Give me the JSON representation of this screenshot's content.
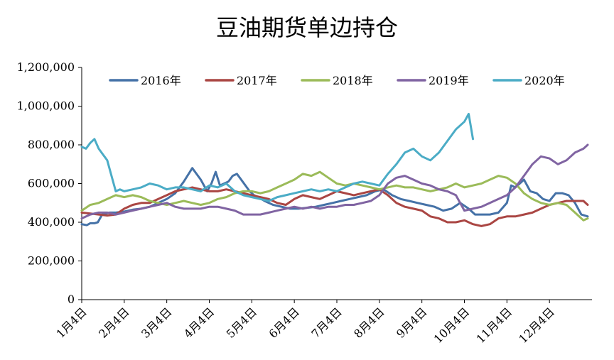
{
  "chart_data": {
    "type": "line",
    "title": "豆油期货单边持仓",
    "xlabel": "",
    "ylabel": "",
    "ylim": [
      0,
      1200000
    ],
    "y_ticks": [
      0,
      200000,
      400000,
      600000,
      800000,
      1000000,
      1200000
    ],
    "y_tick_labels": [
      "0",
      "200,000",
      "400,000",
      "600,000",
      "800,000",
      "1,000,000",
      "1,200,000"
    ],
    "x_tick_labels": [
      "1月4日",
      "2月4日",
      "3月4日",
      "4月4日",
      "5月4日",
      "6月4日",
      "7月4日",
      "8月4日",
      "9月4日",
      "10月4日",
      "11月4日",
      "12月4日"
    ],
    "x_domain": [
      0,
      12
    ],
    "grid": false,
    "legend": "top",
    "series": [
      {
        "name": "2016年",
        "color": "#4572A7",
        "x": [
          0,
          0.12,
          0.2,
          0.3,
          0.38,
          0.48,
          0.65,
          0.8,
          1.0,
          1.2,
          1.4,
          1.6,
          1.8,
          2.0,
          2.2,
          2.4,
          2.6,
          2.8,
          2.95,
          3.05,
          3.15,
          3.25,
          3.35,
          3.45,
          3.55,
          3.65,
          3.75,
          3.85,
          3.95,
          4.05,
          4.15,
          4.3,
          4.5,
          4.7,
          4.9,
          5.1,
          5.3,
          5.5,
          5.7,
          5.9,
          6.1,
          6.3,
          6.5,
          6.7,
          6.9,
          7.1,
          7.3,
          7.5,
          7.7,
          7.9,
          8.1,
          8.3,
          8.5,
          8.7,
          8.9,
          9.1,
          9.25,
          9.4,
          9.6,
          9.8,
          10.0,
          10.1,
          10.2,
          10.3,
          10.4,
          10.55,
          10.7,
          10.85,
          11.0,
          11.15,
          11.3,
          11.45,
          11.6,
          11.75,
          11.9
        ],
        "values": [
          390000,
          385000,
          395000,
          395000,
          400000,
          440000,
          450000,
          450000,
          455000,
          465000,
          470000,
          480000,
          500000,
          520000,
          550000,
          610000,
          680000,
          620000,
          560000,
          600000,
          660000,
          590000,
          600000,
          610000,
          640000,
          650000,
          620000,
          590000,
          560000,
          540000,
          530000,
          510000,
          490000,
          480000,
          470000,
          470000,
          475000,
          480000,
          490000,
          500000,
          510000,
          520000,
          530000,
          540000,
          560000,
          570000,
          540000,
          520000,
          510000,
          500000,
          490000,
          480000,
          460000,
          470000,
          500000,
          470000,
          440000,
          440000,
          440000,
          450000,
          500000,
          590000,
          580000,
          600000,
          620000,
          560000,
          550000,
          520000,
          510000,
          550000,
          550000,
          540000,
          500000,
          440000,
          430000
        ]
      },
      {
        "name": "2017年",
        "color": "#AA4643",
        "x": [
          0,
          0.2,
          0.4,
          0.6,
          0.8,
          1.0,
          1.2,
          1.4,
          1.6,
          1.8,
          2.0,
          2.2,
          2.4,
          2.6,
          2.8,
          3.0,
          3.2,
          3.4,
          3.6,
          3.8,
          4.0,
          4.2,
          4.4,
          4.6,
          4.8,
          5.0,
          5.2,
          5.4,
          5.6,
          5.8,
          6.0,
          6.2,
          6.4,
          6.6,
          6.8,
          7.0,
          7.2,
          7.4,
          7.6,
          7.8,
          8.0,
          8.2,
          8.4,
          8.6,
          8.8,
          9.0,
          9.2,
          9.4,
          9.6,
          9.8,
          10.0,
          10.2,
          10.4,
          10.6,
          10.8,
          11.0,
          11.2,
          11.4,
          11.6,
          11.8,
          11.9
        ],
        "values": [
          450000,
          445000,
          440000,
          435000,
          440000,
          470000,
          490000,
          500000,
          500000,
          520000,
          540000,
          560000,
          570000,
          580000,
          570000,
          560000,
          560000,
          570000,
          560000,
          550000,
          540000,
          530000,
          520000,
          500000,
          490000,
          520000,
          540000,
          530000,
          520000,
          540000,
          560000,
          550000,
          540000,
          550000,
          560000,
          570000,
          540000,
          500000,
          480000,
          470000,
          460000,
          430000,
          420000,
          400000,
          400000,
          410000,
          390000,
          380000,
          390000,
          420000,
          430000,
          430000,
          440000,
          450000,
          470000,
          490000,
          500000,
          510000,
          510000,
          510000,
          490000
        ]
      },
      {
        "name": "2018年",
        "color": "#9BBB59",
        "x": [
          0,
          0.2,
          0.4,
          0.6,
          0.8,
          1.0,
          1.2,
          1.4,
          1.6,
          1.8,
          2.0,
          2.2,
          2.4,
          2.6,
          2.8,
          3.0,
          3.2,
          3.4,
          3.6,
          3.8,
          4.0,
          4.2,
          4.4,
          4.6,
          4.8,
          5.0,
          5.2,
          5.4,
          5.6,
          5.8,
          6.0,
          6.2,
          6.4,
          6.6,
          6.8,
          7.0,
          7.2,
          7.4,
          7.6,
          7.8,
          8.0,
          8.2,
          8.4,
          8.6,
          8.8,
          9.0,
          9.2,
          9.4,
          9.6,
          9.8,
          10.0,
          10.2,
          10.4,
          10.6,
          10.8,
          11.0,
          11.2,
          11.4,
          11.6,
          11.8,
          11.9
        ],
        "values": [
          460000,
          490000,
          500000,
          520000,
          540000,
          530000,
          540000,
          530000,
          510000,
          500000,
          490000,
          500000,
          510000,
          500000,
          490000,
          500000,
          520000,
          530000,
          550000,
          560000,
          560000,
          550000,
          560000,
          580000,
          600000,
          620000,
          650000,
          640000,
          660000,
          630000,
          600000,
          590000,
          600000,
          590000,
          580000,
          570000,
          580000,
          590000,
          580000,
          580000,
          570000,
          560000,
          570000,
          580000,
          600000,
          580000,
          590000,
          600000,
          620000,
          640000,
          630000,
          600000,
          550000,
          520000,
          500000,
          490000,
          500000,
          490000,
          450000,
          410000,
          420000
        ]
      },
      {
        "name": "2019年",
        "color": "#8064A2",
        "x": [
          0,
          0.2,
          0.4,
          0.6,
          0.8,
          1.0,
          1.2,
          1.4,
          1.6,
          1.8,
          2.0,
          2.2,
          2.4,
          2.6,
          2.8,
          3.0,
          3.2,
          3.4,
          3.6,
          3.8,
          4.0,
          4.2,
          4.4,
          4.6,
          4.8,
          5.0,
          5.2,
          5.4,
          5.6,
          5.8,
          6.0,
          6.2,
          6.4,
          6.6,
          6.8,
          7.0,
          7.2,
          7.4,
          7.6,
          7.8,
          8.0,
          8.2,
          8.4,
          8.6,
          8.8,
          9.0,
          9.2,
          9.4,
          9.6,
          9.8,
          10.0,
          10.2,
          10.4,
          10.6,
          10.8,
          11.0,
          11.2,
          11.4,
          11.6,
          11.8,
          11.9
        ],
        "values": [
          420000,
          440000,
          450000,
          450000,
          440000,
          450000,
          460000,
          470000,
          480000,
          490000,
          500000,
          480000,
          470000,
          470000,
          470000,
          480000,
          480000,
          470000,
          460000,
          440000,
          440000,
          440000,
          450000,
          460000,
          470000,
          480000,
          470000,
          480000,
          470000,
          480000,
          480000,
          490000,
          490000,
          500000,
          510000,
          540000,
          600000,
          630000,
          640000,
          620000,
          600000,
          590000,
          570000,
          560000,
          540000,
          460000,
          470000,
          480000,
          500000,
          520000,
          540000,
          580000,
          640000,
          700000,
          740000,
          730000,
          700000,
          720000,
          760000,
          780000,
          800000
        ]
      },
      {
        "name": "2020年",
        "color": "#4BACC6",
        "x": [
          0,
          0.1,
          0.2,
          0.3,
          0.4,
          0.5,
          0.6,
          0.7,
          0.8,
          0.9,
          1.0,
          1.2,
          1.4,
          1.6,
          1.8,
          2.0,
          2.2,
          2.4,
          2.6,
          2.8,
          3.0,
          3.2,
          3.4,
          3.6,
          3.8,
          4.0,
          4.2,
          4.4,
          4.6,
          4.8,
          5.0,
          5.2,
          5.4,
          5.6,
          5.8,
          6.0,
          6.2,
          6.4,
          6.6,
          6.8,
          7.0,
          7.1,
          7.2,
          7.4,
          7.6,
          7.8,
          8.0,
          8.2,
          8.4,
          8.6,
          8.8,
          9.0,
          9.1,
          9.2
        ],
        "values": [
          790000,
          780000,
          810000,
          830000,
          780000,
          750000,
          720000,
          640000,
          560000,
          570000,
          560000,
          570000,
          580000,
          600000,
          590000,
          570000,
          580000,
          580000,
          570000,
          560000,
          590000,
          580000,
          600000,
          560000,
          540000,
          530000,
          520000,
          510000,
          530000,
          540000,
          550000,
          560000,
          570000,
          560000,
          570000,
          560000,
          580000,
          600000,
          610000,
          600000,
          590000,
          620000,
          650000,
          700000,
          760000,
          780000,
          740000,
          720000,
          760000,
          820000,
          880000,
          920000,
          960000,
          830000
        ]
      }
    ]
  }
}
